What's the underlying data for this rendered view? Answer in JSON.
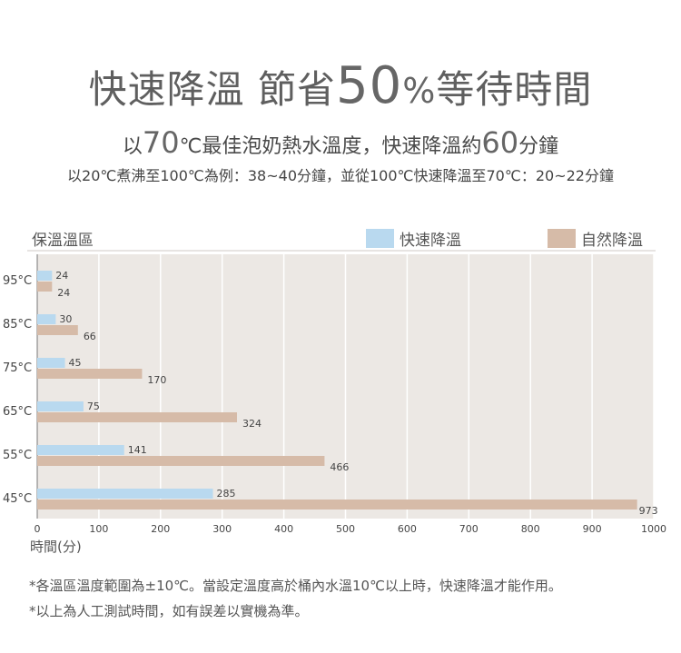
{
  "header": {
    "title_a": "快速降溫  節省",
    "title_num": "50",
    "title_pct": "%",
    "title_b": "等待時間",
    "sub1_a": "以",
    "sub1_num": "70",
    "sub1_b": "℃最佳泡奶熱水溫度，快速降溫約",
    "sub1_num2": "60",
    "sub1_c": "分鐘",
    "sub2": "以20℃煮沸至100℃為例：38~40分鐘，並從100℃快速降溫至70℃：20~22分鐘"
  },
  "notes": [
    "*各溫區溫度範圍為±10℃。當設定溫度高於桶內水溫10℃以上時，快速降溫才能作用。",
    "*以上為人工測試時間，如有誤差以實機為準。"
  ],
  "chart_data": {
    "type": "bar",
    "orientation": "horizontal",
    "ylabel": "保溫溫區",
    "xlabel": "時間(分)",
    "categories": [
      "95°C",
      "85°C",
      "75°C",
      "65°C",
      "55°C",
      "45°C"
    ],
    "series": [
      {
        "name": "快速降溫",
        "color": "#b9d9ef",
        "values": [
          24,
          30,
          45,
          75,
          141,
          285
        ]
      },
      {
        "name": "自然降溫",
        "color": "#d6bba8",
        "values": [
          24,
          66,
          170,
          324,
          466,
          973
        ]
      }
    ],
    "xlim": [
      0,
      1000
    ],
    "xticks": [
      0,
      100,
      200,
      300,
      400,
      500,
      600,
      700,
      800,
      900,
      1000
    ],
    "grid": true,
    "legend_position": "top-right",
    "plot_background": "#ece8e4"
  }
}
